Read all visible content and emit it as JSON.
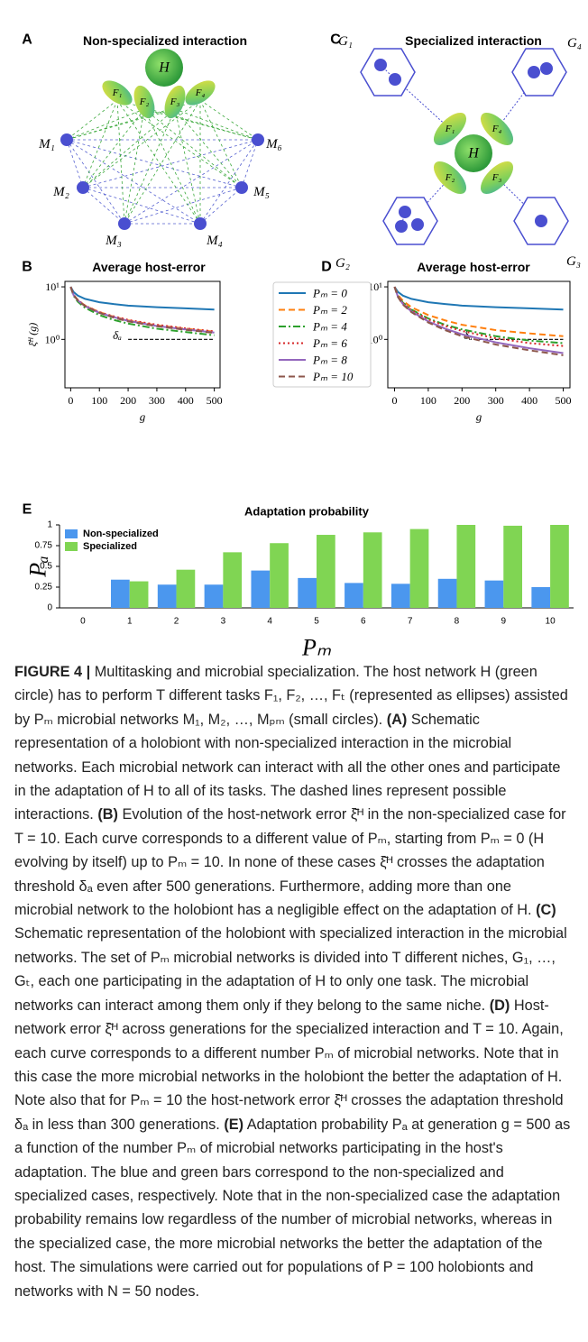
{
  "diagrams": [
    {
      "panel_label": "A",
      "title": "Non-specialized interaction",
      "host": "H",
      "tasks": [
        "F₁",
        "F₂",
        "F₃",
        "F₄"
      ],
      "microbes": [
        "M₁",
        "M₂",
        "M₃",
        "M₄",
        "M₅",
        "M₆"
      ]
    },
    {
      "panel_label": "C",
      "title": "Specialized interaction",
      "host": "H",
      "tasks": [
        "F₁",
        "F₂",
        "F₃",
        "F₄"
      ],
      "niches": [
        "G₁",
        "G₂",
        "G₃",
        "G₄"
      ]
    }
  ],
  "chart_data": [
    {
      "type": "line",
      "panel_label": "B",
      "title": "Average host-error",
      "xlabel": "g",
      "ylabel": "ξ̄ᴴ (g)",
      "log_y": true,
      "x": [
        0,
        10,
        25,
        50,
        100,
        150,
        200,
        300,
        400,
        500
      ],
      "xlim": [
        -20,
        520
      ],
      "xticks": [
        0,
        100,
        200,
        300,
        400,
        500
      ],
      "ylim": [
        0.12,
        12.7
      ],
      "yticks": [
        {
          "value": 1,
          "label": "10⁰"
        },
        {
          "value": 10,
          "label": "10¹"
        }
      ],
      "threshold": {
        "label": "δₐ",
        "value": 1,
        "x": [
          200,
          500
        ]
      },
      "series": [
        {
          "name": "Pₘ = 0",
          "color": "#1f77b4",
          "style": "solid",
          "values": [
            10,
            8,
            6.8,
            5.9,
            5.1,
            4.7,
            4.4,
            4.1,
            3.9,
            3.7
          ]
        },
        {
          "name": "Pₘ = 2",
          "color": "#ff7f0e",
          "style": "dashed",
          "values": [
            10,
            7.1,
            5.6,
            4.4,
            3.3,
            2.7,
            2.3,
            1.85,
            1.6,
            1.4
          ]
        },
        {
          "name": "Pₘ = 4",
          "color": "#2ca02c",
          "style": "dashdot",
          "values": [
            10,
            6.8,
            5.2,
            4,
            2.9,
            2.35,
            2,
            1.6,
            1.38,
            1.2
          ]
        },
        {
          "name": "Pₘ = 6",
          "color": "#d62728",
          "style": "dotted",
          "values": [
            10,
            7.1,
            5.6,
            4.4,
            3.3,
            2.75,
            2.35,
            1.9,
            1.62,
            1.42
          ]
        },
        {
          "name": "Pₘ = 8",
          "color": "#9467bd",
          "style": "solid",
          "values": [
            10,
            7,
            5.5,
            4.3,
            3.2,
            2.65,
            2.25,
            1.8,
            1.55,
            1.35
          ]
        },
        {
          "name": "Pₘ = 10",
          "color": "#8c564b",
          "style": "dashed",
          "values": [
            10,
            7,
            5.5,
            4.3,
            3.2,
            2.6,
            2.2,
            1.78,
            1.52,
            1.33
          ]
        }
      ]
    },
    {
      "type": "line",
      "panel_label": "D",
      "title": "Average host-error",
      "xlabel": "g",
      "ylabel": "ξ̄ᴴ (g)",
      "log_y": true,
      "x": [
        0,
        10,
        25,
        50,
        100,
        150,
        200,
        300,
        400,
        500
      ],
      "xlim": [
        -20,
        520
      ],
      "xticks": [
        0,
        100,
        200,
        300,
        400,
        500
      ],
      "ylim": [
        0.12,
        12.7
      ],
      "yticks": [
        {
          "value": 1,
          "label": "10⁰"
        },
        {
          "value": 10,
          "label": "10¹"
        }
      ],
      "threshold": {
        "label": "δₐ",
        "value": 1,
        "x": [
          250,
          500
        ]
      },
      "series": [
        {
          "color": "#1f77b4",
          "style": "solid",
          "values": [
            10,
            8,
            6.8,
            5.9,
            5.1,
            4.7,
            4.4,
            4.1,
            3.9,
            3.7
          ]
        },
        {
          "color": "#ff7f0e",
          "style": "dashed",
          "values": [
            10,
            7,
            5.4,
            4.1,
            2.9,
            2.3,
            1.9,
            1.5,
            1.3,
            1.15
          ]
        },
        {
          "color": "#2ca02c",
          "style": "dashdot",
          "values": [
            10,
            6.7,
            5,
            3.7,
            2.5,
            1.9,
            1.55,
            1.15,
            0.95,
            0.85
          ]
        },
        {
          "color": "#d62728",
          "style": "dotted",
          "values": [
            10,
            6.6,
            4.9,
            3.6,
            2.4,
            1.8,
            1.45,
            1.05,
            0.85,
            0.75
          ]
        },
        {
          "color": "#9467bd",
          "style": "solid",
          "values": [
            10,
            6.5,
            4.7,
            3.4,
            2.2,
            1.6,
            1.25,
            0.88,
            0.68,
            0.55
          ]
        },
        {
          "color": "#8c564b",
          "style": "dashed",
          "values": [
            10,
            6.4,
            4.6,
            3.3,
            2.1,
            1.5,
            1.15,
            0.8,
            0.62,
            0.5
          ]
        }
      ]
    },
    {
      "type": "bar",
      "panel_label": "E",
      "title": "Adaptation probability",
      "xlabel": "Pₘ",
      "ylabel": "Pₐ",
      "categories": [
        "0",
        "1",
        "2",
        "3",
        "4",
        "5",
        "6",
        "7",
        "8",
        "9",
        "10"
      ],
      "ylim": [
        0,
        1
      ],
      "yticks": [
        0,
        0.25,
        0.5,
        0.75,
        1
      ],
      "series": [
        {
          "name": "Non-specialized",
          "color": "#4b97ee",
          "values": [
            0,
            0.34,
            0.28,
            0.28,
            0.45,
            0.36,
            0.3,
            0.29,
            0.35,
            0.33,
            0.25
          ]
        },
        {
          "name": "Specialized",
          "color": "#80d553",
          "values": [
            0,
            0.32,
            0.46,
            0.67,
            0.78,
            0.88,
            0.91,
            0.95,
            1,
            0.99,
            1
          ]
        }
      ]
    }
  ],
  "caption": {
    "label": "FIGURE 4 |",
    "intro": "Multitasking and microbial specialization. The host network H (green circle) has to perform T different tasks F₁, F₂, …, Fₜ (represented as ellipses) assisted by Pₘ microbial networks M₁, M₂, …, Mₚₘ (small circles).",
    "panels": [
      {
        "tag": "(A)",
        "text": "Schematic representation of a holobiont with non-specialized interaction in the microbial networks. Each microbial network can interact with all the other ones and participate in the adaptation of H to all of its tasks. The dashed lines represent possible interactions."
      },
      {
        "tag": "(B)",
        "text": "Evolution of the host-network error ξ̄ᴴ in the non-specialized case for T = 10. Each curve corresponds to a different value of Pₘ, starting from Pₘ = 0 (H evolving by itself) up to Pₘ = 10. In none of these cases ξ̄ᴴ crosses the adaptation threshold δₐ even after 500 generations. Furthermore, adding more than one microbial network to the holobiont has a negligible effect on the adaptation of H."
      },
      {
        "tag": "(C)",
        "text": "Schematic representation of the holobiont with specialized interaction in the microbial networks. The set of Pₘ microbial networks is divided into T different niches, G₁, …, Gₜ, each one participating in the adaptation of H to only one task. The microbial networks can interact among them only if they belong to the same niche."
      },
      {
        "tag": "(D)",
        "text": "Host-network error ξ̄ᴴ across generations for the specialized interaction and T = 10. Again, each curve corresponds to a different number Pₘ of microbial networks. Note that in this case the more microbial networks in the holobiont the better the adaptation of H. Note also that for Pₘ = 10 the host-network error ξ̄ᴴ crosses the adaptation threshold δₐ in less than 300 generations."
      },
      {
        "tag": "(E)",
        "text": "Adaptation probability Pₐ at generation g = 500 as a function of the number Pₘ of microbial networks participating in the host's adaptation. The blue and green bars correspond to the non-specialized and specialized cases, respectively. Note that in the non-specialized case the adaptation probability remains low regardless of the number of microbial networks, whereas in the specialized case, the more microbial networks the better the adaptation of the host. The simulations were carried out for populations of P = 100 holobionts and networks with N = 50 nodes."
      }
    ]
  }
}
